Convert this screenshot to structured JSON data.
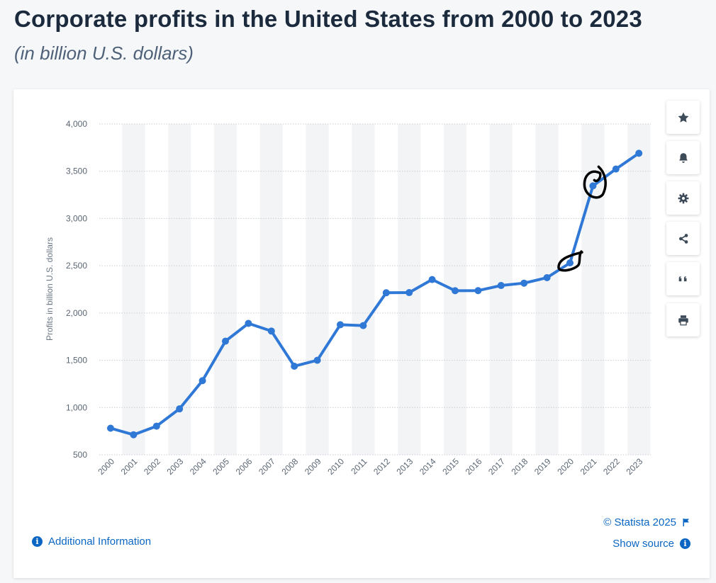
{
  "header": {
    "title": "Corporate profits in the United States from 2000 to 2023",
    "subtitle": "(in billion U.S. dollars)"
  },
  "toolbar": {
    "items": [
      "star-icon",
      "bell-icon",
      "gear-icon",
      "share-icon",
      "quote-icon",
      "print-icon"
    ]
  },
  "footer": {
    "additional_info": "Additional Information",
    "copyright": "© Statista 2025",
    "show_source": "Show source"
  },
  "colors": {
    "line": "#2f78d6",
    "accent": "#0a66c2",
    "band": "#f3f4f6",
    "annotation": "#000000"
  },
  "chart_data": {
    "type": "line",
    "title": "Corporate profits in the United States from 2000 to 2023",
    "xlabel": "",
    "ylabel": "Profits in billion U.S. dollars",
    "ylim": [
      500,
      4000
    ],
    "yticks": [
      500,
      1000,
      1500,
      2000,
      2500,
      3000,
      3500,
      4000
    ],
    "ytick_labels": [
      "500",
      "1,000",
      "1,500",
      "2,000",
      "2,500",
      "3,000",
      "3,500",
      "4,000"
    ],
    "categories": [
      "2000",
      "2001",
      "2002",
      "2003",
      "2004",
      "2005",
      "2006",
      "2007",
      "2008",
      "2009",
      "2010",
      "2011",
      "2012",
      "2013",
      "2014",
      "2015",
      "2016",
      "2017",
      "2018",
      "2019",
      "2020",
      "2021",
      "2022",
      "2023"
    ],
    "series": [
      {
        "name": "Corporate profits",
        "values": [
          781,
          712,
          803,
          986,
          1284,
          1702,
          1890,
          1809,
          1437,
          1500,
          1876,
          1867,
          2214,
          2216,
          2354,
          2236,
          2237,
          2291,
          2316,
          2374,
          2530,
          3345,
          3523,
          3690
        ]
      }
    ],
    "annotations": [
      {
        "type": "hand-drawn circle",
        "category": "2020"
      },
      {
        "type": "hand-drawn circle",
        "category": "2021"
      }
    ],
    "grid": true
  }
}
